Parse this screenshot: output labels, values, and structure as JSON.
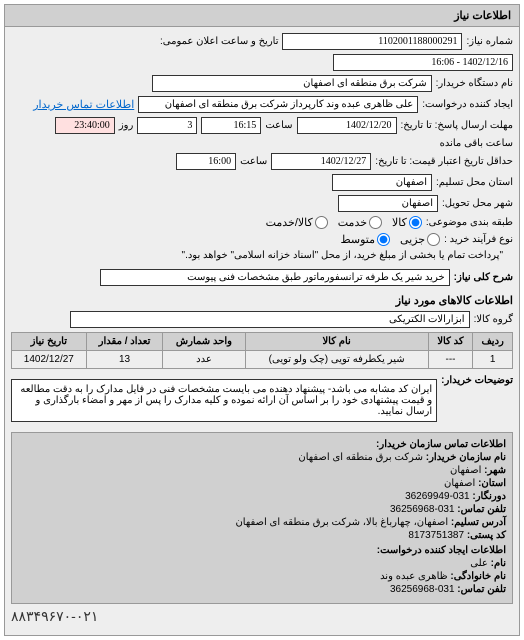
{
  "panel_title": "اطلاعات نیاز",
  "fields": {
    "need_no_label": "شماره نیاز:",
    "need_no": "1102001188000291",
    "public_date_label": "تاریخ و ساعت اعلان عمومی:",
    "public_date": "1402/12/16 - 16:06",
    "buyer_org_label": "نام دستگاه خریدار:",
    "buyer_org": "شرکت برق منطقه ای اصفهان",
    "requester_label": "ایجاد کننده درخواست:",
    "requester": "علی ظاهری عبده وند کارپرداز شرکت برق منطقه ای اصفهان",
    "buyer_contact_link": "اطلاعات تماس خریدار",
    "deadline_label": "مهلت ارسال پاسخ: تا تاریخ:",
    "deadline_date": "1402/12/20",
    "deadline_time_label": "ساعت",
    "deadline_time": "16:15",
    "deadline_days_label": "روز",
    "deadline_days": "3",
    "deadline_remain": "23:40:00",
    "deadline_remain_label": "ساعت باقی مانده",
    "validity_label": "حداقل تاریخ اعتبار قیمت: تا تاریخ:",
    "validity_date": "1402/12/27",
    "validity_time_label": "ساعت",
    "validity_time": "16:00",
    "province_label": "استان محل تسلیم:",
    "province": "اصفهان",
    "city_label": "شهر محل تحویل:",
    "city": "اصفهان",
    "budget_type_label": "طبقه بندی موضوعی:",
    "budget_opt_all": "کالا",
    "budget_opt_service": "خدمت",
    "budget_opt_goods": "کالا/خدمت",
    "purchase_type_label": "نوع فرآیند خرید :",
    "purchase_opt_partial": "جزیی",
    "purchase_opt_medium": "متوسط",
    "purchase_note": "\"پرداخت تمام یا بخشی از مبلغ خرید، از محل \"اسناد خزانه اسلامی\" خواهد بود.\"",
    "need_desc_label": "شرح کلی نیاز:",
    "need_desc": "خرید شیر یک طرفه ترانسفورماتور طبق مشخصات فنی پیوست",
    "goods_info_title": "اطلاعات کالاهای مورد نیاز",
    "goods_group_label": "گروه کالا:",
    "goods_group": "ابزارآلات الکتریکی"
  },
  "table": {
    "headers": [
      "ردیف",
      "کد کالا",
      "نام کالا",
      "واحد شمارش",
      "تعداد / مقدار",
      "تاریخ نیاز"
    ],
    "rows": [
      [
        "1",
        "---",
        "شیر یکطرفه تویی (چک ولو تویی)",
        "عدد",
        "13",
        "1402/12/27"
      ]
    ]
  },
  "remarks": {
    "label": "توضیحات خریدار:",
    "text": "ایران کد مشابه می باشد- پیشنهاد دهنده می بایست مشخصات فنی در فایل مدارک را به دقت مطالعه و قیمت پیشنهادی خود را بر اساس آن ارائه نموده و کلیه مدارک را پس از مهر و امضاء بارگذاری و ارسال نمایید."
  },
  "contact": {
    "title": "اطلاعات تماس سازمان خریدار:",
    "org_label": "نام سازمان خریدار:",
    "org": "شرکت برق منطقه ای اصفهان",
    "city_label": "شهر:",
    "city": "اصفهان",
    "province_label": "استان:",
    "province": "اصفهان",
    "fax_label": "دورنگار:",
    "fax": "031-36269949",
    "phone_label": "تلفن تماس:",
    "phone": "031-36256968",
    "address_label": "آدرس تسلیم:",
    "address": "اصفهان، چهارباغ بالا، شرکت برق منطقه ای اصفهان",
    "postal_label": "کد پستی:",
    "postal": "8173751387",
    "req_contact_title": "اطلاعات ایجاد کننده درخواست:",
    "name_label": "نام:",
    "name": "علی",
    "family_label": "نام خانوادگی:",
    "family": "ظاهری عبده وند",
    "tel_label": "تلفن تماس:",
    "tel": "031-36256968"
  },
  "footer_phone": "۸۸۳۴۹۶۷۰-۰۲۱"
}
